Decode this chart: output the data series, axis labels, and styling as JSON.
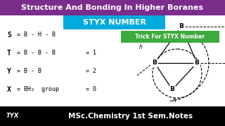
{
  "title": "Structure And Bonding In Higher Boranes",
  "title_bg": "#7B2D8B",
  "styx_label": "STYX NUMBER",
  "styx_bg": "#00AADD",
  "trick_label": "Trick For STYX Number",
  "trick_bg": "#3DAA3D",
  "bottom_label": "MSc.Chemistry 1st Sem.Notes",
  "bottom_bg": "#000000",
  "bottom_text_color": "#FFFFFF",
  "bg_color": "#FFFFFF",
  "left_labels": [
    "S",
    "T",
    "Y",
    "X"
  ],
  "left_defs": [
    "= B - H - B",
    "= B - B - B",
    "= B - B",
    "= BH₂  group"
  ],
  "right_vals": [
    "",
    "= 1",
    "= 2",
    "= 0"
  ],
  "tyx_label": "TYX"
}
